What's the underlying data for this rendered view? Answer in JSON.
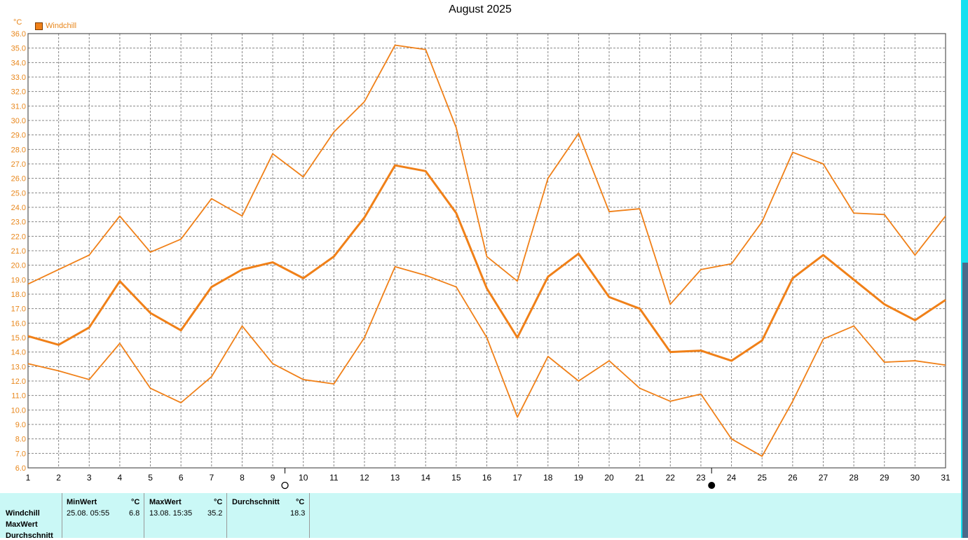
{
  "title": "August 2025",
  "unit": "°C",
  "legend": "Windchill",
  "colors": {
    "line": "#f08018",
    "grid": "#888888",
    "panel": "#caf8f6"
  },
  "moon": {
    "full_after_day": 9,
    "new_after_day": 23
  },
  "chart_data": {
    "type": "line",
    "x": [
      1,
      2,
      3,
      4,
      5,
      6,
      7,
      8,
      9,
      10,
      11,
      12,
      13,
      14,
      15,
      16,
      17,
      18,
      19,
      20,
      21,
      22,
      23,
      24,
      25,
      26,
      27,
      28,
      29,
      30,
      31
    ],
    "ylim": [
      6.0,
      36.0
    ],
    "ytick_step": 1.0,
    "xlabel": "",
    "ylabel": "°C",
    "grid": true,
    "legend_position": "top-left",
    "series": [
      {
        "name": "Windchill",
        "role": "max",
        "values": [
          18.7,
          19.7,
          20.7,
          23.4,
          20.9,
          21.8,
          24.6,
          23.4,
          27.7,
          26.1,
          29.2,
          31.3,
          35.2,
          34.9,
          29.5,
          20.6,
          18.9,
          26.0,
          29.1,
          23.7,
          23.9,
          17.3,
          19.7,
          20.1,
          23.0,
          27.8,
          27.0,
          23.6,
          23.5,
          20.7,
          23.4
        ]
      },
      {
        "name": "Windchill",
        "role": "avg",
        "values": [
          15.1,
          14.5,
          15.7,
          18.9,
          16.7,
          15.5,
          18.5,
          19.7,
          20.2,
          19.1,
          20.6,
          23.3,
          26.9,
          26.5,
          23.6,
          18.4,
          15.0,
          19.2,
          20.8,
          17.8,
          17.0,
          14.0,
          14.1,
          13.4,
          14.8,
          19.1,
          20.7,
          19.0,
          17.3,
          16.2,
          17.6
        ]
      },
      {
        "name": "Windchill",
        "role": "min",
        "values": [
          13.2,
          12.7,
          12.1,
          14.6,
          11.5,
          10.5,
          12.3,
          15.8,
          13.2,
          12.1,
          11.8,
          15.0,
          19.9,
          19.3,
          18.5,
          15.0,
          9.5,
          13.7,
          12.0,
          13.4,
          11.5,
          10.6,
          11.1,
          8.0,
          6.8,
          10.6,
          14.9,
          15.8,
          13.3,
          13.4,
          13.1
        ]
      }
    ]
  },
  "stats": {
    "row_labels": [
      "Windchill",
      "MaxWert",
      "Durchschnitt"
    ],
    "min": {
      "header": "MinWert",
      "unit": "°C",
      "datetime": "25.08.  05:55",
      "value": "6.8"
    },
    "max": {
      "header": "MaxWert",
      "unit": "°C",
      "datetime": "13.08.  15:35",
      "value": "35.2"
    },
    "avg": {
      "header": "Durchschnitt",
      "unit": "°C",
      "value": "18.3"
    }
  }
}
